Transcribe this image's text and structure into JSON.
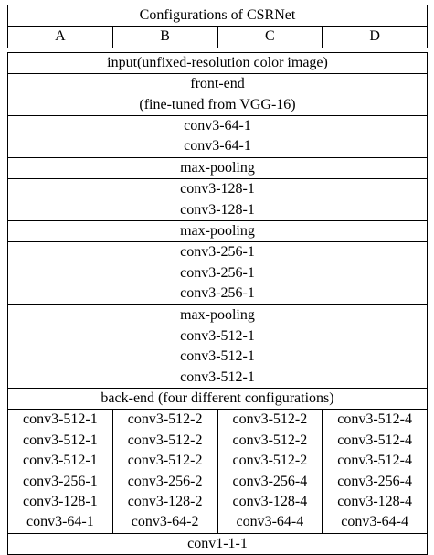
{
  "table": {
    "title": "Configurations of CSRNet",
    "columns": [
      "A",
      "B",
      "C",
      "D"
    ],
    "input_row": "input(unfixed-resolution color image)",
    "frontend_title": [
      "front-end",
      "(fine-tuned from VGG-16)"
    ],
    "frontend_blocks": [
      [
        "conv3-64-1",
        "conv3-64-1"
      ],
      [
        "max-pooling"
      ],
      [
        "conv3-128-1",
        "conv3-128-1"
      ],
      [
        "max-pooling"
      ],
      [
        "conv3-256-1",
        "conv3-256-1",
        "conv3-256-1"
      ],
      [
        "max-pooling"
      ],
      [
        "conv3-512-1",
        "conv3-512-1",
        "conv3-512-1"
      ]
    ],
    "backend_title": "back-end (four different configurations)",
    "backend_columns": [
      [
        "conv3-512-1",
        "conv3-512-1",
        "conv3-512-1",
        "conv3-256-1",
        "conv3-128-1",
        "conv3-64-1"
      ],
      [
        "conv3-512-2",
        "conv3-512-2",
        "conv3-512-2",
        "conv3-256-2",
        "conv3-128-2",
        "conv3-64-2"
      ],
      [
        "conv3-512-2",
        "conv3-512-2",
        "conv3-512-2",
        "conv3-256-4",
        "conv3-128-4",
        "conv3-64-4"
      ],
      [
        "conv3-512-4",
        "conv3-512-4",
        "conv3-512-4",
        "conv3-256-4",
        "conv3-128-4",
        "conv3-64-4"
      ]
    ],
    "output_row": "conv1-1-1"
  }
}
